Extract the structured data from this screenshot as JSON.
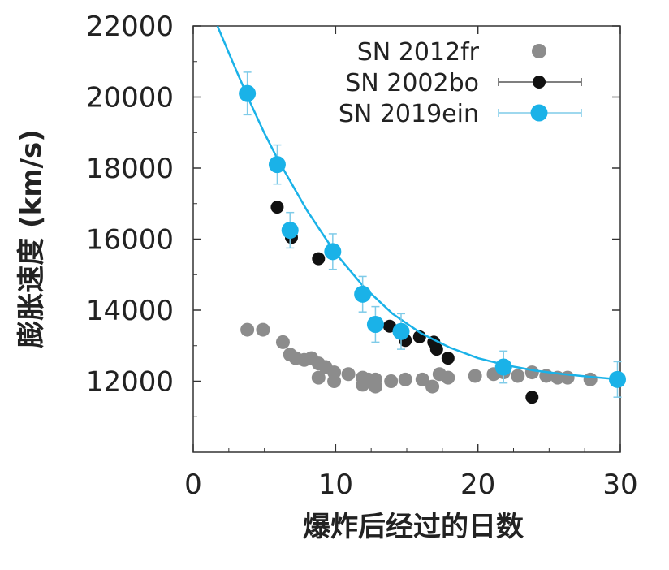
{
  "chart_data": {
    "type": "scatter",
    "title": "",
    "xlabel": "爆炸后经过的日数",
    "ylabel": "膨胀速度 (km/s)",
    "xlim": [
      0,
      30
    ],
    "ylim": [
      10000,
      22000
    ],
    "x_ticks": [
      0,
      10,
      20,
      30
    ],
    "y_ticks": [
      12000,
      14000,
      16000,
      18000,
      20000,
      22000
    ],
    "x_tick_labels": [
      "0",
      "10",
      "20",
      "30"
    ],
    "y_tick_labels": [
      "12000",
      "14000",
      "16000",
      "18000",
      "20000",
      "22000"
    ],
    "grid": false,
    "legend_position": "top-right",
    "series": [
      {
        "name": "SN 2012fr",
        "color": "#8c8c8c",
        "marker": "circle",
        "error_bars": false,
        "points": [
          [
            3.8,
            13450
          ],
          [
            4.9,
            13450
          ],
          [
            6.3,
            13100
          ],
          [
            6.8,
            12750
          ],
          [
            7.2,
            12650
          ],
          [
            7.8,
            12600
          ],
          [
            8.3,
            12650
          ],
          [
            8.8,
            12500
          ],
          [
            9.3,
            12400
          ],
          [
            9.9,
            12250
          ],
          [
            8.8,
            12100
          ],
          [
            9.9,
            12000
          ],
          [
            10.9,
            12200
          ],
          [
            11.9,
            12100
          ],
          [
            12.3,
            12050
          ],
          [
            12.8,
            12050
          ],
          [
            11.9,
            11900
          ],
          [
            12.8,
            11850
          ],
          [
            13.9,
            12000
          ],
          [
            14.9,
            12050
          ],
          [
            16.1,
            12050
          ],
          [
            16.8,
            11850
          ],
          [
            17.3,
            12200
          ],
          [
            17.9,
            12100
          ],
          [
            19.8,
            12150
          ],
          [
            21.1,
            12200
          ],
          [
            21.8,
            12250
          ],
          [
            22.8,
            12150
          ],
          [
            23.8,
            12250
          ],
          [
            24.8,
            12150
          ],
          [
            25.6,
            12100
          ],
          [
            26.3,
            12100
          ],
          [
            27.9,
            12050
          ]
        ]
      },
      {
        "name": "SN 2002bo",
        "color": "#111111",
        "marker": "circle",
        "error_bars": true,
        "points": [
          [
            5.9,
            16900
          ],
          [
            6.9,
            16050
          ],
          [
            8.8,
            15450
          ],
          [
            13.8,
            13550
          ],
          [
            14.9,
            13150
          ],
          [
            15.9,
            13250
          ],
          [
            16.9,
            13100
          ],
          [
            17.1,
            12900
          ],
          [
            17.9,
            12650
          ],
          [
            23.8,
            11550
          ]
        ]
      },
      {
        "name": "SN 2019ein",
        "color": "#1ab2e8",
        "marker": "circle",
        "error_bars": true,
        "points": [
          [
            3.8,
            20100
          ],
          [
            5.9,
            18100
          ],
          [
            6.8,
            16250
          ],
          [
            9.8,
            15650
          ],
          [
            11.9,
            14450
          ],
          [
            12.8,
            13600
          ],
          [
            14.6,
            13400
          ],
          [
            21.8,
            12400
          ],
          [
            29.8,
            12050
          ]
        ],
        "errors": [
          600,
          550,
          500,
          500,
          500,
          500,
          500,
          450,
          500
        ],
        "fit_curve": [
          [
            1.7,
            22000
          ],
          [
            3,
            20770
          ],
          [
            4,
            19850
          ],
          [
            5,
            18980
          ],
          [
            6,
            18200
          ],
          [
            8,
            16800
          ],
          [
            10,
            15600
          ],
          [
            12,
            14650
          ],
          [
            14,
            13900
          ],
          [
            16,
            13350
          ],
          [
            18,
            12950
          ],
          [
            20,
            12650
          ],
          [
            22,
            12450
          ],
          [
            24,
            12300
          ],
          [
            26,
            12200
          ],
          [
            28,
            12120
          ],
          [
            30,
            12050
          ]
        ]
      }
    ]
  }
}
